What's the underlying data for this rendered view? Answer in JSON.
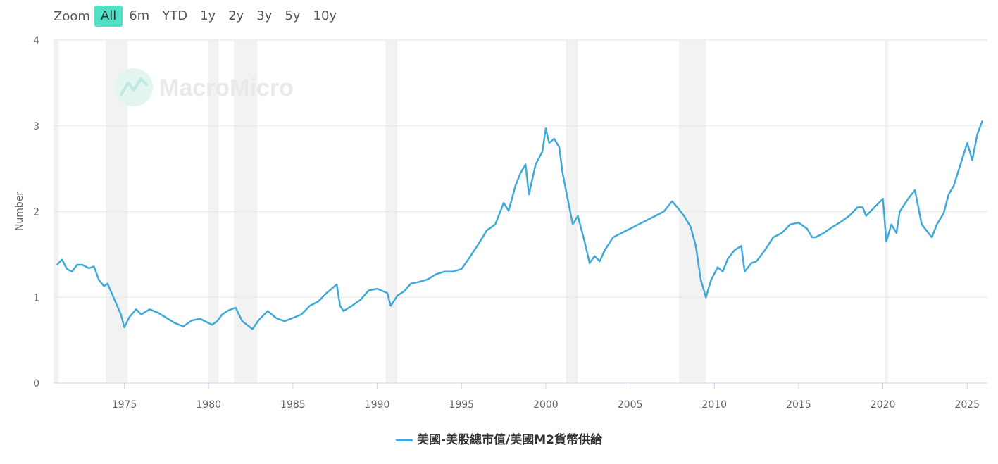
{
  "zoom": {
    "label": "Zoom",
    "buttons": [
      "All",
      "6m",
      "YTD",
      "1y",
      "2y",
      "3y",
      "5y",
      "10y"
    ],
    "active": "All"
  },
  "watermark": {
    "text": "MacroMicro"
  },
  "colors": {
    "series": "#3fa9d8",
    "recession": "#f2f2f2",
    "grid": "#e6e6e6",
    "active_zoom": "#4fe0c5"
  },
  "chart_data": {
    "type": "line",
    "title": "",
    "xlabel": "",
    "ylabel": "Number",
    "xlim": [
      1970.8,
      2026.2
    ],
    "ylim": [
      0,
      4
    ],
    "yticks": [
      0,
      1,
      2,
      3,
      4
    ],
    "xticks": [
      1975,
      1980,
      1985,
      1990,
      1995,
      2000,
      2005,
      2010,
      2015,
      2020,
      2025
    ],
    "grid": true,
    "legend": "bottom-center",
    "recessions": [
      [
        1970.8,
        1971.1
      ],
      [
        1973.9,
        1975.2
      ],
      [
        1980.0,
        1980.6
      ],
      [
        1981.5,
        1982.9
      ],
      [
        1990.5,
        1991.2
      ],
      [
        2001.2,
        2001.9
      ],
      [
        2007.9,
        2009.5
      ],
      [
        2020.1,
        2020.3
      ]
    ],
    "series": [
      {
        "name": "美國-美股總市值/美國M2貨幣供給",
        "x": [
          1971.0,
          1971.3,
          1971.6,
          1971.9,
          1972.2,
          1972.5,
          1972.9,
          1973.2,
          1973.5,
          1973.8,
          1974.0,
          1974.4,
          1974.8,
          1975.0,
          1975.3,
          1975.7,
          1976.0,
          1976.5,
          1977.0,
          1977.5,
          1978.0,
          1978.5,
          1979.0,
          1979.5,
          1980.2,
          1980.5,
          1980.8,
          1981.2,
          1981.6,
          1982.0,
          1982.6,
          1983.0,
          1983.5,
          1984.0,
          1984.5,
          1985.0,
          1985.5,
          1986.0,
          1986.5,
          1987.0,
          1987.6,
          1987.8,
          1988.0,
          1988.5,
          1989.0,
          1989.5,
          1990.0,
          1990.6,
          1990.8,
          1991.2,
          1991.6,
          1992.0,
          1992.5,
          1993.0,
          1993.5,
          1994.0,
          1994.5,
          1995.0,
          1995.5,
          1996.0,
          1996.5,
          1997.0,
          1997.5,
          1997.8,
          1998.2,
          1998.5,
          1998.8,
          1999.0,
          1999.4,
          1999.8,
          2000.0,
          2000.2,
          2000.5,
          2000.8,
          2001.0,
          2001.3,
          2001.6,
          2001.9,
          2002.3,
          2002.6,
          2002.9,
          2003.2,
          2003.5,
          2004.0,
          2004.5,
          2005.0,
          2005.5,
          2006.0,
          2006.5,
          2007.0,
          2007.5,
          2007.8,
          2008.2,
          2008.6,
          2008.9,
          2009.2,
          2009.5,
          2009.8,
          2010.2,
          2010.5,
          2010.8,
          2011.2,
          2011.6,
          2011.8,
          2012.2,
          2012.5,
          2013.0,
          2013.5,
          2014.0,
          2014.5,
          2015.0,
          2015.5,
          2015.8,
          2016.0,
          2016.5,
          2017.0,
          2017.5,
          2018.0,
          2018.5,
          2018.8,
          2019.0,
          2019.5,
          2020.0,
          2020.2,
          2020.5,
          2020.8,
          2021.0,
          2021.5,
          2021.9,
          2022.3,
          2022.7,
          2022.9,
          2023.2,
          2023.6,
          2023.9,
          2024.2,
          2024.6,
          2025.0,
          2025.3,
          2025.6,
          2025.9
        ],
        "values": [
          1.38,
          1.44,
          1.33,
          1.3,
          1.38,
          1.38,
          1.34,
          1.36,
          1.2,
          1.13,
          1.16,
          0.98,
          0.8,
          0.65,
          0.77,
          0.86,
          0.8,
          0.86,
          0.82,
          0.76,
          0.7,
          0.66,
          0.73,
          0.75,
          0.68,
          0.72,
          0.8,
          0.85,
          0.88,
          0.72,
          0.63,
          0.74,
          0.84,
          0.76,
          0.72,
          0.76,
          0.8,
          0.9,
          0.95,
          1.05,
          1.15,
          0.9,
          0.84,
          0.9,
          0.97,
          1.08,
          1.1,
          1.05,
          0.9,
          1.02,
          1.07,
          1.16,
          1.18,
          1.21,
          1.27,
          1.3,
          1.3,
          1.33,
          1.47,
          1.62,
          1.78,
          1.85,
          2.1,
          2.01,
          2.3,
          2.45,
          2.55,
          2.2,
          2.55,
          2.7,
          2.97,
          2.8,
          2.85,
          2.75,
          2.45,
          2.15,
          1.85,
          1.95,
          1.65,
          1.4,
          1.48,
          1.42,
          1.55,
          1.7,
          1.75,
          1.8,
          1.85,
          1.9,
          1.95,
          2.0,
          2.12,
          2.05,
          1.95,
          1.82,
          1.6,
          1.2,
          1.0,
          1.2,
          1.35,
          1.3,
          1.45,
          1.55,
          1.6,
          1.3,
          1.4,
          1.42,
          1.55,
          1.7,
          1.75,
          1.85,
          1.87,
          1.8,
          1.7,
          1.7,
          1.75,
          1.82,
          1.88,
          1.95,
          2.05,
          2.05,
          1.95,
          2.05,
          2.15,
          1.65,
          1.85,
          1.75,
          2.0,
          2.15,
          2.25,
          1.85,
          1.75,
          1.7,
          1.85,
          1.98,
          2.2,
          2.3,
          2.55,
          2.8,
          2.6,
          2.9,
          3.06
        ]
      }
    ]
  }
}
